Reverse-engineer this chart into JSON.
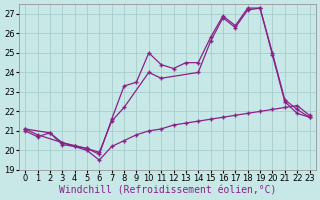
{
  "xlabel": "Windchill (Refroidissement éolien,°C)",
  "bg_color": "#c8e8e8",
  "grid_color": "#a0c8c8",
  "line_color": "#882288",
  "ylim": [
    19,
    27.5
  ],
  "xlim": [
    -0.5,
    23.5
  ],
  "yticks": [
    19,
    20,
    21,
    22,
    23,
    24,
    25,
    26,
    27
  ],
  "xticks": [
    0,
    1,
    2,
    3,
    4,
    5,
    6,
    7,
    8,
    9,
    10,
    11,
    12,
    13,
    14,
    15,
    16,
    17,
    18,
    19,
    20,
    21,
    22,
    23
  ],
  "line1_x": [
    0,
    1,
    2,
    3,
    4,
    5,
    6,
    7,
    8,
    9,
    10,
    11,
    12,
    13,
    14,
    15,
    16,
    17,
    18,
    19,
    20,
    21,
    22,
    23
  ],
  "line1_y": [
    21.0,
    20.7,
    20.9,
    20.3,
    20.2,
    20.0,
    19.5,
    20.2,
    20.5,
    20.8,
    21.0,
    21.1,
    21.3,
    21.4,
    21.5,
    21.6,
    21.7,
    21.8,
    21.9,
    22.0,
    22.1,
    22.2,
    22.3,
    21.8
  ],
  "line2_x": [
    0,
    1,
    3,
    4,
    5,
    6,
    7,
    8,
    9,
    10,
    11,
    12,
    13,
    14,
    15,
    16,
    17,
    18,
    19,
    20,
    21,
    22,
    23
  ],
  "line2_y": [
    21.1,
    20.8,
    20.4,
    20.2,
    20.1,
    19.8,
    21.6,
    23.3,
    23.5,
    25.0,
    24.4,
    24.2,
    24.5,
    24.5,
    25.8,
    26.9,
    26.4,
    27.3,
    27.3,
    25.0,
    22.6,
    22.1,
    21.7
  ],
  "line3_x": [
    0,
    2,
    3,
    5,
    6,
    7,
    8,
    10,
    11,
    14,
    15,
    16,
    17,
    18,
    19,
    20,
    21,
    22,
    23
  ],
  "line3_y": [
    21.1,
    20.9,
    20.4,
    20.1,
    19.9,
    21.5,
    22.2,
    24.0,
    23.7,
    24.0,
    25.6,
    26.8,
    26.3,
    27.2,
    27.3,
    24.9,
    22.5,
    21.9,
    21.7
  ],
  "xlabel_fontsize": 7,
  "tick_fontsize": 6.0
}
